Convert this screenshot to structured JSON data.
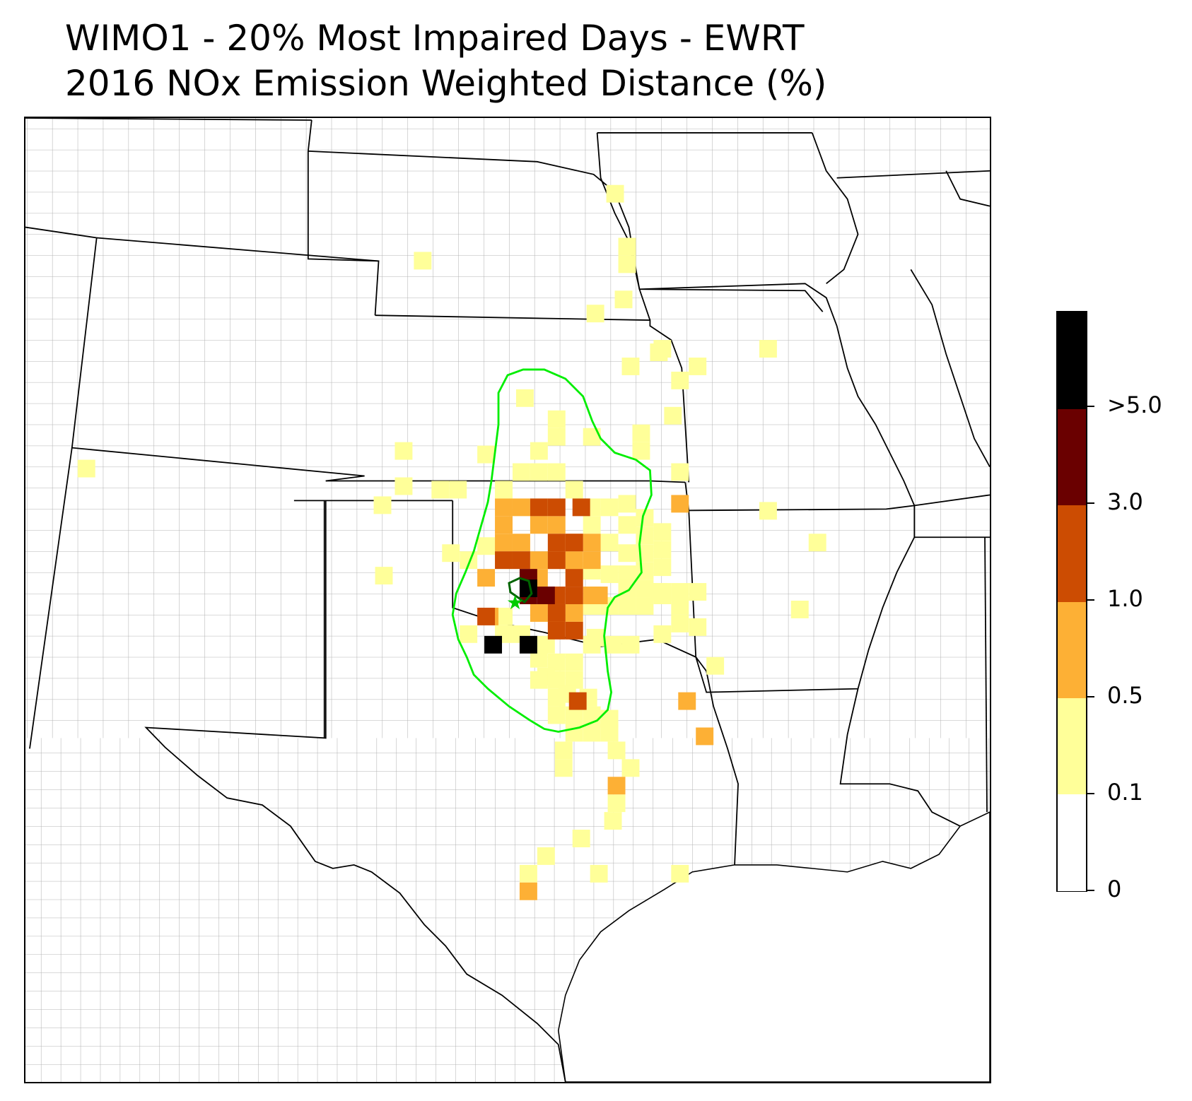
{
  "title": {
    "line1": "WIMO1 - 20% Most Impaired Days - EWRT",
    "line2": "2016 NOx Emission Weighted Distance (%)"
  },
  "colors": {
    "bin_0_0.1": "#ffffff",
    "bin_0.1_0.5": "#ffff99",
    "bin_0.5_1.0": "#fdb035",
    "bin_1.0_3.0": "#cc4c02",
    "bin_3.0_5.0": "#6a0000",
    "bin_gt5": "#000000",
    "contour_outer": "#00ee00",
    "contour_inner": "#006400",
    "site_marker": "#00cc00",
    "state_lines": "#000000",
    "county_lines": "#a0a0a0"
  },
  "colorbar": {
    "bins": [
      {
        "from": 0,
        "to": 0.1,
        "color": "#ffffff"
      },
      {
        "from": 0.1,
        "to": 0.5,
        "color": "#ffff99"
      },
      {
        "from": 0.5,
        "to": 1.0,
        "color": "#fdb035"
      },
      {
        "from": 1.0,
        "to": 3.0,
        "color": "#cc4c02"
      },
      {
        "from": 3.0,
        "to": 5.0,
        "color": "#6a0000"
      },
      {
        "from": 5.0,
        "to": null,
        "color": "#000000"
      }
    ],
    "tick_labels": [
      "0",
      "0.1",
      "0.5",
      "1.0",
      "3.0",
      ">5.0"
    ]
  },
  "map": {
    "region": "Central United States",
    "site_marker_icon": "star-icon",
    "overlays": [
      "state-boundaries",
      "county-boundaries",
      "outer-contour",
      "inner-contour"
    ]
  }
}
